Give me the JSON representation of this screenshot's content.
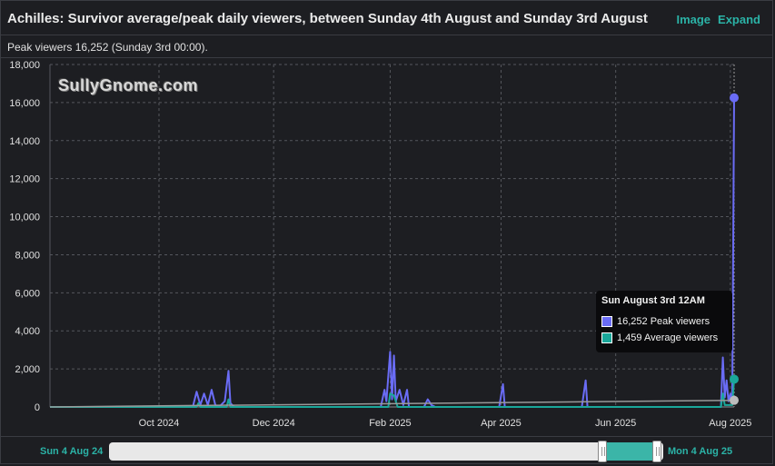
{
  "header": {
    "title": "Achilles: Survivor average/peak daily viewers, between Sunday 4th August and Sunday 3rd August",
    "image_label": "Image",
    "expand_label": "Expand",
    "subtitle": "Peak viewers 16,252 (Sunday 3rd 00:00)."
  },
  "watermark": "SullyGnome.com",
  "colors": {
    "peak": "#6a6cf6",
    "average": "#1aa79a",
    "trend": "#9a9a9a",
    "accent": "#2bb3a7"
  },
  "chart_data": {
    "type": "line",
    "x_range": [
      "2024-08-04",
      "2025-08-03"
    ],
    "ylim": [
      0,
      18000
    ],
    "y_ticks": [
      0,
      2000,
      4000,
      6000,
      8000,
      10000,
      12000,
      14000,
      16000,
      18000
    ],
    "y_tick_labels": [
      "0",
      "2,000",
      "4,000",
      "6,000",
      "8,000",
      "10,000",
      "12,000",
      "14,000",
      "16,000",
      "18,000"
    ],
    "x_tick_labels": [
      {
        "date": "2024-10-01",
        "label": "Oct 2024"
      },
      {
        "date": "2024-12-01",
        "label": "Dec 2024"
      },
      {
        "date": "2025-02-01",
        "label": "Feb 2025"
      },
      {
        "date": "2025-04-01",
        "label": "Apr 2025"
      },
      {
        "date": "2025-06-01",
        "label": "Jun 2025"
      },
      {
        "date": "2025-08-01",
        "label": "Aug 2025"
      }
    ],
    "grid": true,
    "series": [
      {
        "name": "Peak viewers",
        "points": [
          [
            "2024-08-04",
            0
          ],
          [
            "2024-10-19",
            0
          ],
          [
            "2024-10-21",
            800
          ],
          [
            "2024-10-23",
            100
          ],
          [
            "2024-10-25",
            700
          ],
          [
            "2024-10-27",
            100
          ],
          [
            "2024-10-29",
            900
          ],
          [
            "2024-10-31",
            100
          ],
          [
            "2024-11-02",
            0
          ],
          [
            "2024-11-05",
            300
          ],
          [
            "2024-11-07",
            1900
          ],
          [
            "2024-11-08",
            200
          ],
          [
            "2024-11-10",
            0
          ],
          [
            "2025-01-27",
            0
          ],
          [
            "2025-01-29",
            900
          ],
          [
            "2025-01-30",
            300
          ],
          [
            "2025-02-01",
            2900
          ],
          [
            "2025-02-02",
            400
          ],
          [
            "2025-02-03",
            2700
          ],
          [
            "2025-02-04",
            300
          ],
          [
            "2025-02-06",
            900
          ],
          [
            "2025-02-08",
            100
          ],
          [
            "2025-02-10",
            900
          ],
          [
            "2025-02-11",
            0
          ],
          [
            "2025-02-19",
            0
          ],
          [
            "2025-02-21",
            400
          ],
          [
            "2025-02-23",
            100
          ],
          [
            "2025-02-25",
            0
          ],
          [
            "2025-03-31",
            0
          ],
          [
            "2025-04-02",
            1200
          ],
          [
            "2025-04-03",
            0
          ],
          [
            "2025-05-14",
            0
          ],
          [
            "2025-05-16",
            1400
          ],
          [
            "2025-05-17",
            0
          ],
          [
            "2025-07-27",
            0
          ],
          [
            "2025-07-28",
            2600
          ],
          [
            "2025-07-29",
            500
          ],
          [
            "2025-07-30",
            1400
          ],
          [
            "2025-07-31",
            300
          ],
          [
            "2025-08-01",
            700
          ],
          [
            "2025-08-02",
            200
          ],
          [
            "2025-08-03",
            16252
          ]
        ]
      },
      {
        "name": "Average viewers",
        "points": [
          [
            "2024-08-04",
            0
          ],
          [
            "2024-10-21",
            0
          ],
          [
            "2024-10-22",
            200
          ],
          [
            "2024-10-23",
            0
          ],
          [
            "2024-11-06",
            0
          ],
          [
            "2024-11-07",
            400
          ],
          [
            "2024-11-08",
            0
          ],
          [
            "2025-01-31",
            0
          ],
          [
            "2025-02-01",
            700
          ],
          [
            "2025-02-03",
            600
          ],
          [
            "2025-02-05",
            0
          ],
          [
            "2025-07-27",
            0
          ],
          [
            "2025-07-28",
            700
          ],
          [
            "2025-07-29",
            100
          ],
          [
            "2025-08-02",
            100
          ],
          [
            "2025-08-03",
            1459
          ]
        ]
      },
      {
        "name": "",
        "points": [
          [
            "2024-08-04",
            0
          ],
          [
            "2025-08-03",
            350
          ]
        ]
      }
    ]
  },
  "tooltip": {
    "title": "Sun August 3rd 12AM",
    "peak_label": "16,252 Peak viewers",
    "average_label": "1,459 Average viewers"
  },
  "navigator": {
    "left_label": "Sun 4 Aug 24",
    "right_label": "Mon 4 Aug 25"
  }
}
